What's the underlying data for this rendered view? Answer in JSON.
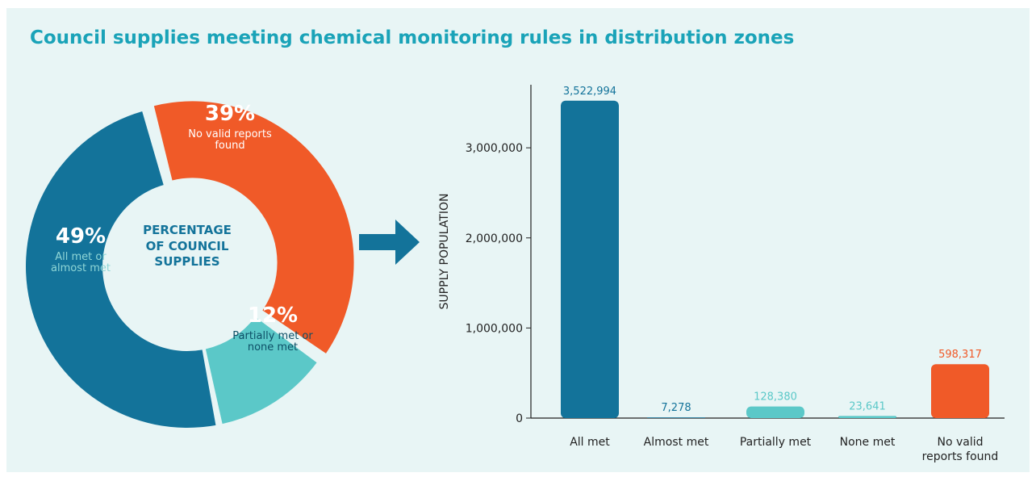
{
  "title": "Council supplies meeting chemical monitoring rules in distribution zones",
  "chart_data": [
    {
      "type": "pie",
      "donut": true,
      "center_label": "PERCENTAGE OF COUNCIL SUPPLIES",
      "categories": [
        "No valid reports found",
        "Partially met or none met",
        "All met or almost met"
      ],
      "values": [
        39,
        12,
        49
      ],
      "value_labels": [
        "39%",
        "12%",
        "49%"
      ],
      "colors": [
        "#f05a28",
        "#5bc8c8",
        "#13739a"
      ]
    },
    {
      "type": "bar",
      "ylabel": "SUPPLY POPULATION",
      "categories": [
        "All met",
        "Almost met",
        "Partially met",
        "None met",
        "No valid reports found"
      ],
      "values": [
        3522994,
        7278,
        128380,
        23641,
        598317
      ],
      "value_labels": [
        "3,522,994",
        "7,278",
        "128,380",
        "23,641",
        "598,317"
      ],
      "colors": [
        "#13739a",
        "#13739a",
        "#5bc8c8",
        "#5bc8c8",
        "#f05a28"
      ],
      "ylim": [
        0,
        3700000
      ],
      "yticks": [
        0,
        {
          "value": 1000000,
          "label": "1,000,000"
        },
        {
          "value": 2000000,
          "label": "2,000,000"
        },
        {
          "value": 3000000,
          "label": "3,000,000"
        }
      ]
    }
  ]
}
